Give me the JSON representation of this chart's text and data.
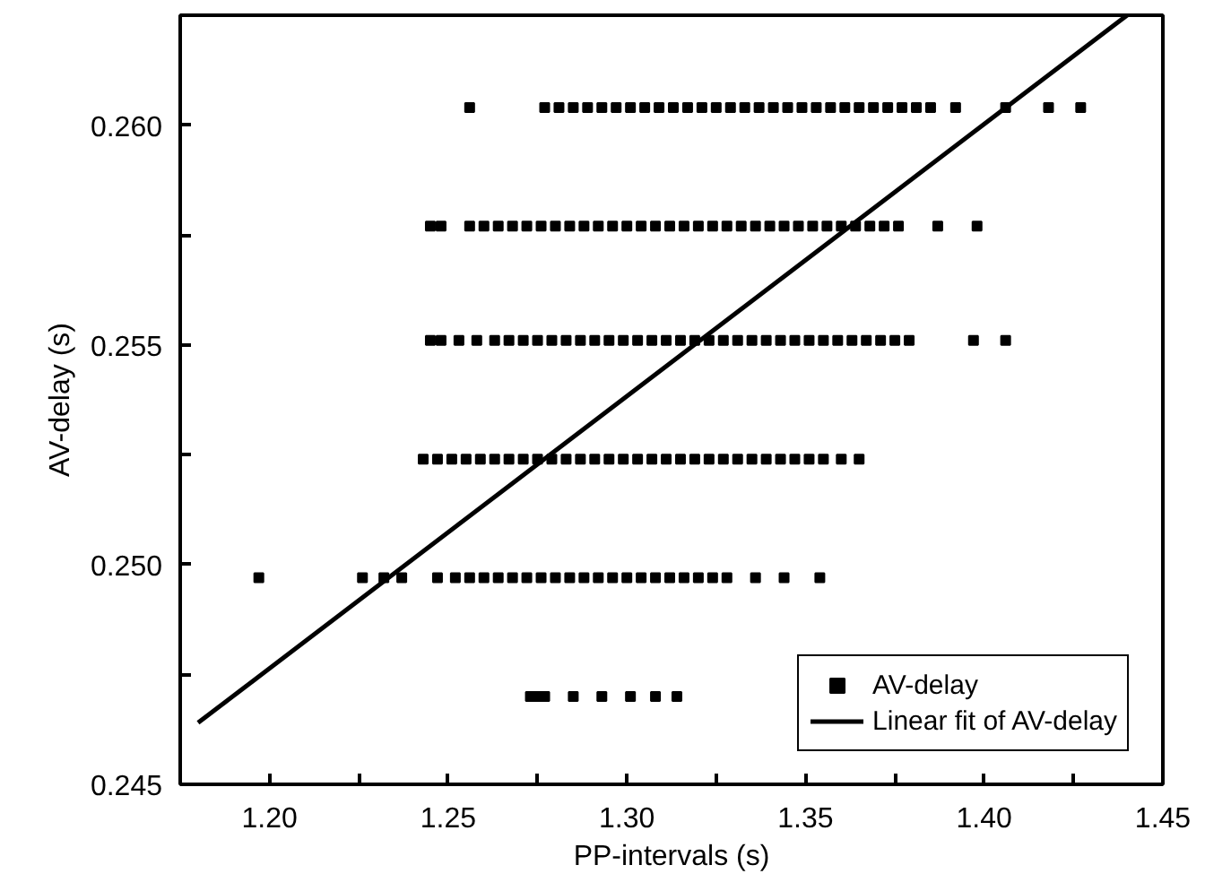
{
  "chart_data": {
    "type": "scatter",
    "xlabel": "PP-intervals (s)",
    "ylabel": "AV-delay (s)",
    "xlim": [
      1.175,
      1.45
    ],
    "ylim": [
      0.245,
      0.2625
    ],
    "xticks": [
      {
        "value": 1.2,
        "label": "1.20"
      },
      {
        "value": 1.225,
        "label": null
      },
      {
        "value": 1.25,
        "label": "1.25"
      },
      {
        "value": 1.275,
        "label": null
      },
      {
        "value": 1.3,
        "label": "1.30"
      },
      {
        "value": 1.325,
        "label": null
      },
      {
        "value": 1.35,
        "label": "1.35"
      },
      {
        "value": 1.375,
        "label": null
      },
      {
        "value": 1.4,
        "label": "1.40"
      },
      {
        "value": 1.425,
        "label": null
      },
      {
        "value": 1.45,
        "label": "1.45"
      }
    ],
    "yticks": [
      0.245,
      {
        "value": 0.2475,
        "label": null
      },
      {
        "value": 0.25,
        "label": "0.250"
      },
      {
        "value": 0.2525,
        "label": null
      },
      0.255,
      {
        "value": 0.2575,
        "label": null
      },
      {
        "value": 0.26,
        "label": "0.260"
      }
    ],
    "grid": false,
    "legend": "bottom right",
    "marker": "square",
    "series": [
      {
        "name": "AV-delay",
        "color": "#000000",
        "x": [
          1.256,
          1.277,
          1.281,
          1.285,
          1.289,
          1.293,
          1.297,
          1.301,
          1.305,
          1.309,
          1.313,
          1.317,
          1.321,
          1.325,
          1.329,
          1.333,
          1.337,
          1.341,
          1.345,
          1.349,
          1.353,
          1.357,
          1.361,
          1.365,
          1.369,
          1.373,
          1.377,
          1.381,
          1.385,
          1.392,
          1.406,
          1.418,
          1.427,
          1.245,
          1.248,
          1.256,
          1.26,
          1.264,
          1.268,
          1.272,
          1.276,
          1.28,
          1.284,
          1.288,
          1.292,
          1.296,
          1.3,
          1.304,
          1.308,
          1.312,
          1.316,
          1.32,
          1.324,
          1.328,
          1.332,
          1.336,
          1.34,
          1.344,
          1.348,
          1.352,
          1.356,
          1.36,
          1.364,
          1.368,
          1.372,
          1.376,
          1.387,
          1.398,
          1.245,
          1.248,
          1.253,
          1.258,
          1.263,
          1.267,
          1.271,
          1.275,
          1.279,
          1.283,
          1.287,
          1.291,
          1.295,
          1.299,
          1.303,
          1.307,
          1.311,
          1.315,
          1.319,
          1.323,
          1.327,
          1.331,
          1.335,
          1.339,
          1.343,
          1.347,
          1.351,
          1.355,
          1.359,
          1.363,
          1.367,
          1.371,
          1.375,
          1.379,
          1.397,
          1.406,
          1.243,
          1.247,
          1.251,
          1.255,
          1.259,
          1.263,
          1.267,
          1.271,
          1.275,
          1.279,
          1.283,
          1.287,
          1.291,
          1.295,
          1.299,
          1.303,
          1.307,
          1.311,
          1.315,
          1.319,
          1.323,
          1.327,
          1.331,
          1.335,
          1.339,
          1.343,
          1.347,
          1.351,
          1.355,
          1.36,
          1.365,
          1.197,
          1.226,
          1.232,
          1.237,
          1.247,
          1.252,
          1.256,
          1.26,
          1.264,
          1.268,
          1.272,
          1.276,
          1.28,
          1.284,
          1.288,
          1.292,
          1.296,
          1.3,
          1.304,
          1.308,
          1.312,
          1.316,
          1.32,
          1.324,
          1.328,
          1.336,
          1.344,
          1.354,
          1.273,
          1.275,
          1.277,
          1.285,
          1.293,
          1.301,
          1.308,
          1.314
        ],
        "values": [
          0.2604,
          0.2604,
          0.2604,
          0.2604,
          0.2604,
          0.2604,
          0.2604,
          0.2604,
          0.2604,
          0.2604,
          0.2604,
          0.2604,
          0.2604,
          0.2604,
          0.2604,
          0.2604,
          0.2604,
          0.2604,
          0.2604,
          0.2604,
          0.2604,
          0.2604,
          0.2604,
          0.2604,
          0.2604,
          0.2604,
          0.2604,
          0.2604,
          0.2604,
          0.2604,
          0.2604,
          0.2604,
          0.2604,
          0.2577,
          0.2577,
          0.2577,
          0.2577,
          0.2577,
          0.2577,
          0.2577,
          0.2577,
          0.2577,
          0.2577,
          0.2577,
          0.2577,
          0.2577,
          0.2577,
          0.2577,
          0.2577,
          0.2577,
          0.2577,
          0.2577,
          0.2577,
          0.2577,
          0.2577,
          0.2577,
          0.2577,
          0.2577,
          0.2577,
          0.2577,
          0.2577,
          0.2577,
          0.2577,
          0.2577,
          0.2577,
          0.2577,
          0.2577,
          0.2577,
          0.2551,
          0.2551,
          0.2551,
          0.2551,
          0.2551,
          0.2551,
          0.2551,
          0.2551,
          0.2551,
          0.2551,
          0.2551,
          0.2551,
          0.2551,
          0.2551,
          0.2551,
          0.2551,
          0.2551,
          0.2551,
          0.2551,
          0.2551,
          0.2551,
          0.2551,
          0.2551,
          0.2551,
          0.2551,
          0.2551,
          0.2551,
          0.2551,
          0.2551,
          0.2551,
          0.2551,
          0.2551,
          0.2551,
          0.2551,
          0.2551,
          0.2551,
          0.2524,
          0.2524,
          0.2524,
          0.2524,
          0.2524,
          0.2524,
          0.2524,
          0.2524,
          0.2524,
          0.2524,
          0.2524,
          0.2524,
          0.2524,
          0.2524,
          0.2524,
          0.2524,
          0.2524,
          0.2524,
          0.2524,
          0.2524,
          0.2524,
          0.2524,
          0.2524,
          0.2524,
          0.2524,
          0.2524,
          0.2524,
          0.2524,
          0.2524,
          0.2524,
          0.2524,
          0.2497,
          0.2497,
          0.2497,
          0.2497,
          0.2497,
          0.2497,
          0.2497,
          0.2497,
          0.2497,
          0.2497,
          0.2497,
          0.2497,
          0.2497,
          0.2497,
          0.2497,
          0.2497,
          0.2497,
          0.2497,
          0.2497,
          0.2497,
          0.2497,
          0.2497,
          0.2497,
          0.2497,
          0.2497,
          0.2497,
          0.2497,
          0.2497,
          0.247,
          0.247,
          0.247,
          0.247,
          0.247,
          0.247,
          0.247,
          0.247
        ]
      },
      {
        "name": "Linear fit of AV-delay",
        "type": "line",
        "color": "#000000",
        "marker": "none",
        "line_style": "solid",
        "x": [
          1.18,
          1.44
        ],
        "values": [
          0.2464,
          0.2625
        ]
      }
    ]
  }
}
